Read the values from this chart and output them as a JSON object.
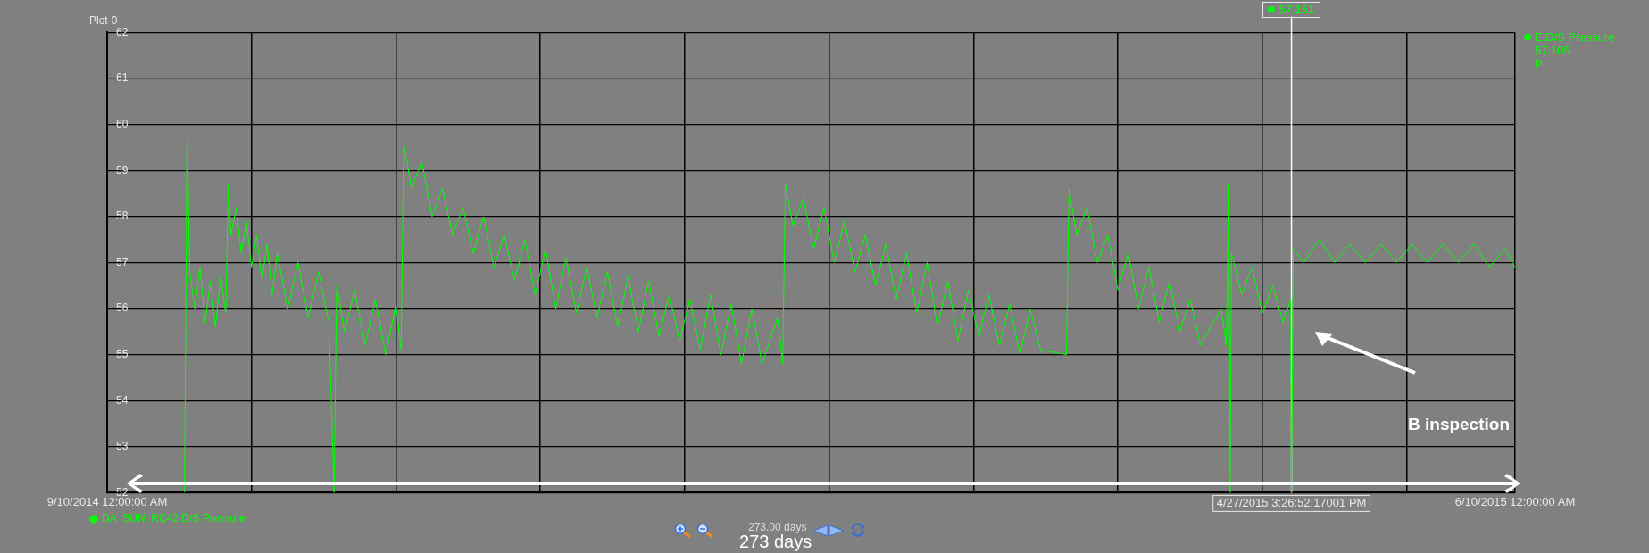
{
  "chart_data": {
    "type": "line",
    "title": "Plot-0",
    "xlim": [
      "2014-09-10",
      "2015-06-10"
    ],
    "xticks": [
      {
        "value": "2014-09-10",
        "label": "9/10/2014 12:00:00 AM"
      },
      {
        "value": "2014-10-08",
        "label": null
      },
      {
        "value": "2014-11-05",
        "label": null
      },
      {
        "value": "2014-12-03",
        "label": null
      },
      {
        "value": "2014-12-31",
        "label": null
      },
      {
        "value": "2015-01-28",
        "label": null
      },
      {
        "value": "2015-02-25",
        "label": null
      },
      {
        "value": "2015-03-25",
        "label": null
      },
      {
        "value": "2015-04-22",
        "label": null
      },
      {
        "value": "2015-05-20",
        "label": null
      },
      {
        "value": "2015-06-10",
        "label": "6/10/2015 12:00:00 AM"
      }
    ],
    "ylim": [
      52,
      62
    ],
    "yticks": [
      52,
      53,
      54,
      55,
      56,
      57,
      58,
      59,
      60,
      61,
      62
    ],
    "grid": true,
    "legend": "bottom left",
    "marker": "none",
    "line_style": "solid",
    "series": [
      {
        "name": "DA_SUN_RC42 D/S Pressure",
        "color": "#00ff00",
        "x": [
          "2014-09-25T00:00",
          "2014-09-25T12:00",
          "2014-09-26",
          "2014-09-27",
          "2014-09-28",
          "2014-09-29",
          "2014-09-30",
          "2014-10-01",
          "2014-10-02",
          "2014-10-03",
          "2014-10-03T12:00",
          "2014-10-04",
          "2014-10-05",
          "2014-10-06",
          "2014-10-07",
          "2014-10-08",
          "2014-10-09",
          "2014-10-10",
          "2014-10-11",
          "2014-10-12",
          "2014-10-13",
          "2014-10-15",
          "2014-10-17",
          "2014-10-19",
          "2014-10-21",
          "2014-10-23",
          "2014-10-24",
          "2014-10-24T12:00",
          "2014-10-26",
          "2014-10-28",
          "2014-10-30",
          "2014-11-01",
          "2014-11-03",
          "2014-11-05",
          "2014-11-06",
          "2014-11-06T12:00",
          "2014-11-08",
          "2014-11-10",
          "2014-11-12",
          "2014-11-14",
          "2014-11-16",
          "2014-11-18",
          "2014-11-20",
          "2014-11-22",
          "2014-11-24",
          "2014-11-26",
          "2014-11-28",
          "2014-11-30",
          "2014-12-02",
          "2014-12-04",
          "2014-12-06",
          "2014-12-08",
          "2014-12-10",
          "2014-12-12",
          "2014-12-14",
          "2014-12-16",
          "2014-12-18",
          "2014-12-20",
          "2014-12-22",
          "2014-12-24",
          "2014-12-26",
          "2014-12-28",
          "2014-12-30",
          "2015-01-01",
          "2015-01-03",
          "2015-01-05",
          "2015-01-07",
          "2015-01-09",
          "2015-01-11",
          "2015-01-13",
          "2015-01-15",
          "2015-01-18",
          "2015-01-19",
          "2015-01-19T12:00",
          "2015-01-21",
          "2015-01-23",
          "2015-01-25",
          "2015-01-27",
          "2015-01-29",
          "2015-01-31",
          "2015-02-02",
          "2015-02-04",
          "2015-02-06",
          "2015-02-08",
          "2015-02-10",
          "2015-02-12",
          "2015-02-14",
          "2015-02-16",
          "2015-02-18",
          "2015-02-20",
          "2015-02-22",
          "2015-02-24",
          "2015-02-26",
          "2015-02-28",
          "2015-03-02",
          "2015-03-04",
          "2015-03-06",
          "2015-03-08",
          "2015-03-10",
          "2015-03-15",
          "2015-03-15T12:00",
          "2015-03-17",
          "2015-03-19",
          "2015-03-21",
          "2015-03-23",
          "2015-03-25",
          "2015-03-27",
          "2015-03-29",
          "2015-03-31",
          "2015-04-02",
          "2015-04-04",
          "2015-04-06",
          "2015-04-08",
          "2015-04-10",
          "2015-04-14",
          "2015-04-15",
          "2015-04-15T12:00",
          "2015-04-15T18:00",
          "2015-04-16",
          "2015-04-18",
          "2015-04-20",
          "2015-04-22",
          "2015-04-24",
          "2015-04-26",
          "2015-04-27T12:00",
          "2015-04-27T15:26",
          "2015-04-28",
          "2015-04-30",
          "2015-05-03",
          "2015-05-06",
          "2015-05-09",
          "2015-05-12",
          "2015-05-15",
          "2015-05-18",
          "2015-05-21",
          "2015-05-24",
          "2015-05-27",
          "2015-05-30",
          "2015-06-02",
          "2015-06-05",
          "2015-06-08",
          "2015-06-10"
        ],
        "values": [
          52,
          60,
          56.8,
          56.0,
          56.9,
          55.7,
          56.6,
          55.6,
          56.7,
          55.9,
          58.7,
          57.6,
          58.2,
          57.2,
          57.9,
          56.9,
          57.6,
          56.6,
          57.4,
          56.3,
          57.2,
          56.0,
          57.0,
          55.8,
          56.8,
          55.7,
          52,
          56.5,
          55.5,
          56.4,
          55.2,
          56.2,
          55.0,
          56.1,
          55.1,
          59.6,
          58.6,
          59.2,
          58.0,
          58.6,
          57.6,
          58.2,
          57.2,
          58.0,
          56.9,
          57.6,
          56.6,
          57.5,
          56.3,
          57.3,
          56.0,
          57.1,
          55.9,
          56.9,
          55.8,
          56.8,
          55.6,
          56.7,
          55.5,
          56.6,
          55.4,
          56.3,
          55.3,
          56.2,
          55.1,
          56.3,
          55.0,
          56.1,
          54.8,
          56.0,
          54.8,
          55.8,
          54.8,
          58.7,
          57.8,
          58.4,
          57.3,
          58.2,
          57.0,
          57.9,
          56.8,
          57.6,
          56.5,
          57.4,
          56.2,
          57.2,
          55.9,
          57.0,
          55.6,
          56.6,
          55.3,
          56.4,
          55.4,
          56.3,
          55.2,
          56.1,
          55.0,
          56.0,
          55.1,
          55.0,
          58.6,
          57.6,
          58.2,
          57.0,
          57.6,
          56.4,
          57.2,
          56.0,
          56.9,
          55.7,
          56.6,
          55.5,
          56.2,
          55.2,
          56.0,
          55.2,
          58.7,
          52,
          57.2,
          56.3,
          56.9,
          55.9,
          56.5,
          55.7,
          56.2,
          52,
          57.3,
          57.0,
          57.5,
          57.0,
          57.4,
          57.0,
          57.4,
          57.0,
          57.4,
          57.0,
          57.4,
          57.0,
          57.4,
          56.9,
          57.3,
          56.9
        ]
      }
    ],
    "ref_lines": [
      {
        "axis": "x",
        "value": "2015-04-27T15:26",
        "label": "4/27/2015 3:26:52.17001 PM",
        "color": "#ffffff"
      }
    ],
    "annotations": [
      "57.151",
      "E.D/S Pressure",
      "57.105",
      "P",
      "273.00 days",
      "273 days",
      "B inspection"
    ]
  }
}
